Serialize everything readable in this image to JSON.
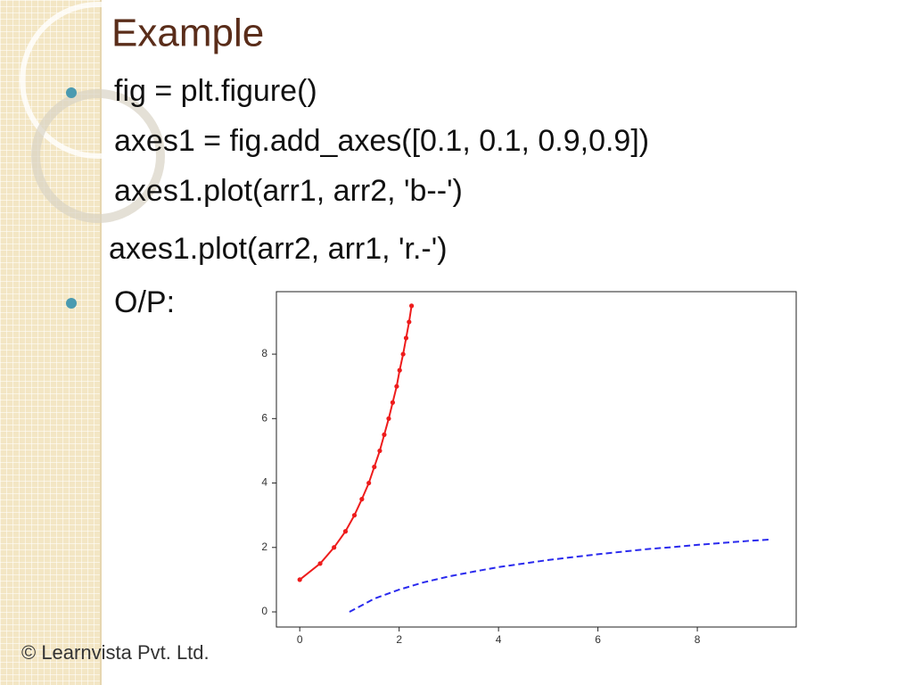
{
  "title": "Example",
  "code_lines": [
    "fig = plt.figure()",
    "axes1 = fig.add_axes([0.1, 0.1, 0.9,0.9])",
    "axes1.plot(arr1, arr2, 'b--')",
    "axes1.plot(arr2, arr1, 'r.-')"
  ],
  "output_label": "O/P:",
  "footer": "© Learnvista Pvt. Ltd.",
  "chart_data": {
    "type": "line",
    "series": [
      {
        "color": "#2a2aee",
        "dashed": true,
        "markers": false,
        "x": [
          1,
          1.5,
          2,
          2.5,
          3,
          3.5,
          4,
          4.5,
          5,
          5.5,
          6,
          6.5,
          7,
          7.5,
          8,
          8.5,
          9,
          9.5
        ],
        "values": [
          0,
          0.41,
          0.69,
          0.92,
          1.1,
          1.25,
          1.39,
          1.5,
          1.61,
          1.7,
          1.79,
          1.87,
          1.95,
          2.01,
          2.08,
          2.14,
          2.2,
          2.25
        ]
      },
      {
        "color": "#ee1c1c",
        "dashed": false,
        "markers": true,
        "x": [
          0,
          0.41,
          0.69,
          0.92,
          1.1,
          1.25,
          1.39,
          1.5,
          1.61,
          1.7,
          1.79,
          1.87,
          1.95,
          2.01,
          2.08,
          2.14,
          2.2,
          2.25
        ],
        "values": [
          1,
          1.5,
          2,
          2.5,
          3,
          3.5,
          4,
          4.5,
          5,
          5.5,
          6,
          6.5,
          7,
          7.5,
          8,
          8.5,
          9,
          9.5
        ]
      }
    ],
    "xlim": [
      -0.47,
      9.99
    ],
    "ylim": [
      -0.47,
      9.94
    ],
    "xticks": [
      0,
      2,
      4,
      6,
      8
    ],
    "yticks": [
      0,
      2,
      4,
      6,
      8
    ]
  }
}
